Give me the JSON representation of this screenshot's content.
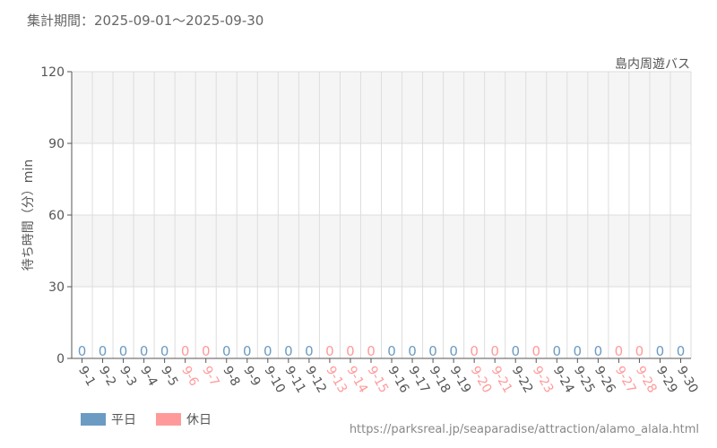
{
  "header": {
    "period": "集計期間：2025-09-01〜2025-09-30"
  },
  "chart_data": {
    "type": "bar",
    "title": "島内周遊バス",
    "ylabel": "待ち時間（分）min",
    "ylim": [
      0,
      120
    ],
    "yticks": [
      0,
      30,
      60,
      90,
      120
    ],
    "grid": true,
    "categories": [
      "9-1",
      "9-2",
      "9-3",
      "9-4",
      "9-5",
      "9-6",
      "9-7",
      "9-8",
      "9-9",
      "9-10",
      "9-11",
      "9-12",
      "9-13",
      "9-14",
      "9-15",
      "9-16",
      "9-17",
      "9-18",
      "9-19",
      "9-20",
      "9-21",
      "9-22",
      "9-23",
      "9-24",
      "9-25",
      "9-26",
      "9-27",
      "9-28",
      "9-29",
      "9-30"
    ],
    "day_types": [
      "weekday",
      "weekday",
      "weekday",
      "weekday",
      "weekday",
      "holiday",
      "holiday",
      "weekday",
      "weekday",
      "weekday",
      "weekday",
      "weekday",
      "holiday",
      "holiday",
      "holiday",
      "weekday",
      "weekday",
      "weekday",
      "weekday",
      "holiday",
      "holiday",
      "weekday",
      "holiday",
      "weekday",
      "weekday",
      "weekday",
      "holiday",
      "holiday",
      "weekday",
      "weekday"
    ],
    "values": [
      0,
      0,
      0,
      0,
      0,
      0,
      0,
      0,
      0,
      0,
      0,
      0,
      0,
      0,
      0,
      0,
      0,
      0,
      0,
      0,
      0,
      0,
      0,
      0,
      0,
      0,
      0,
      0,
      0,
      0
    ],
    "legend": [
      {
        "key": "weekday",
        "label": "平日",
        "color": "#6b9bc3"
      },
      {
        "key": "holiday",
        "label": "休日",
        "color": "#ff9a9a"
      }
    ],
    "legend_position": "bottom-left"
  },
  "colors": {
    "weekday": "#6b9bc3",
    "holiday": "#ff9a9a",
    "band": "#f5f5f5",
    "grid": "#dddddd"
  },
  "footer": {
    "source_url": "https://parksreal.jp/seaparadise/attraction/alamo_alala.html"
  }
}
